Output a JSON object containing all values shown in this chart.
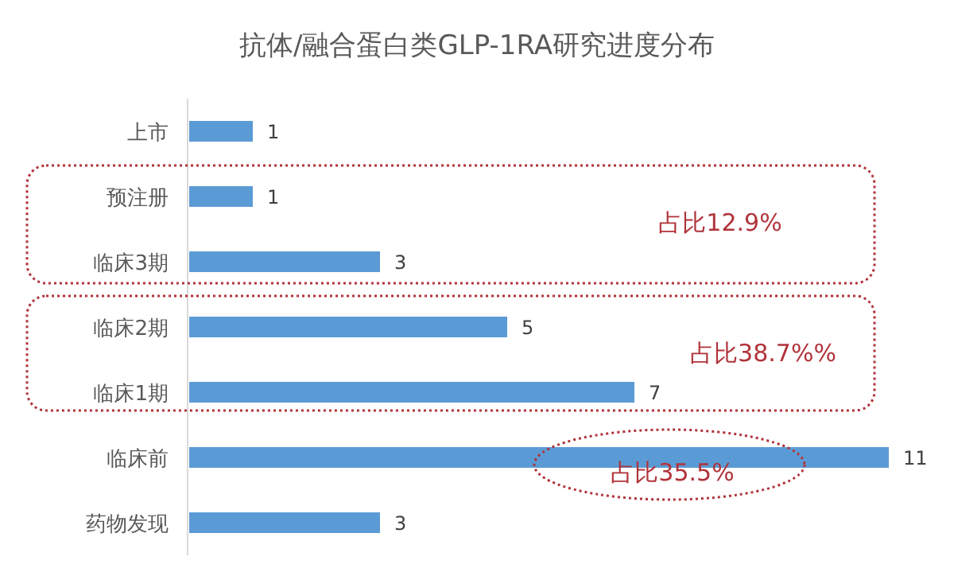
{
  "chart_data": {
    "type": "bar",
    "orientation": "horizontal",
    "title": "抗体/融合蛋白类GLP-1RA研究进度分布",
    "categories": [
      "上市",
      "预注册",
      "临床3期",
      "临床2期",
      "临床1期",
      "临床前",
      "药物发现"
    ],
    "values": [
      1,
      1,
      3,
      5,
      7,
      11,
      3
    ],
    "color": "#5b9bd5",
    "data_labels": true,
    "annotations": [
      "占比12.9%",
      "占比38.7%%",
      "占比35.5%"
    ]
  }
}
